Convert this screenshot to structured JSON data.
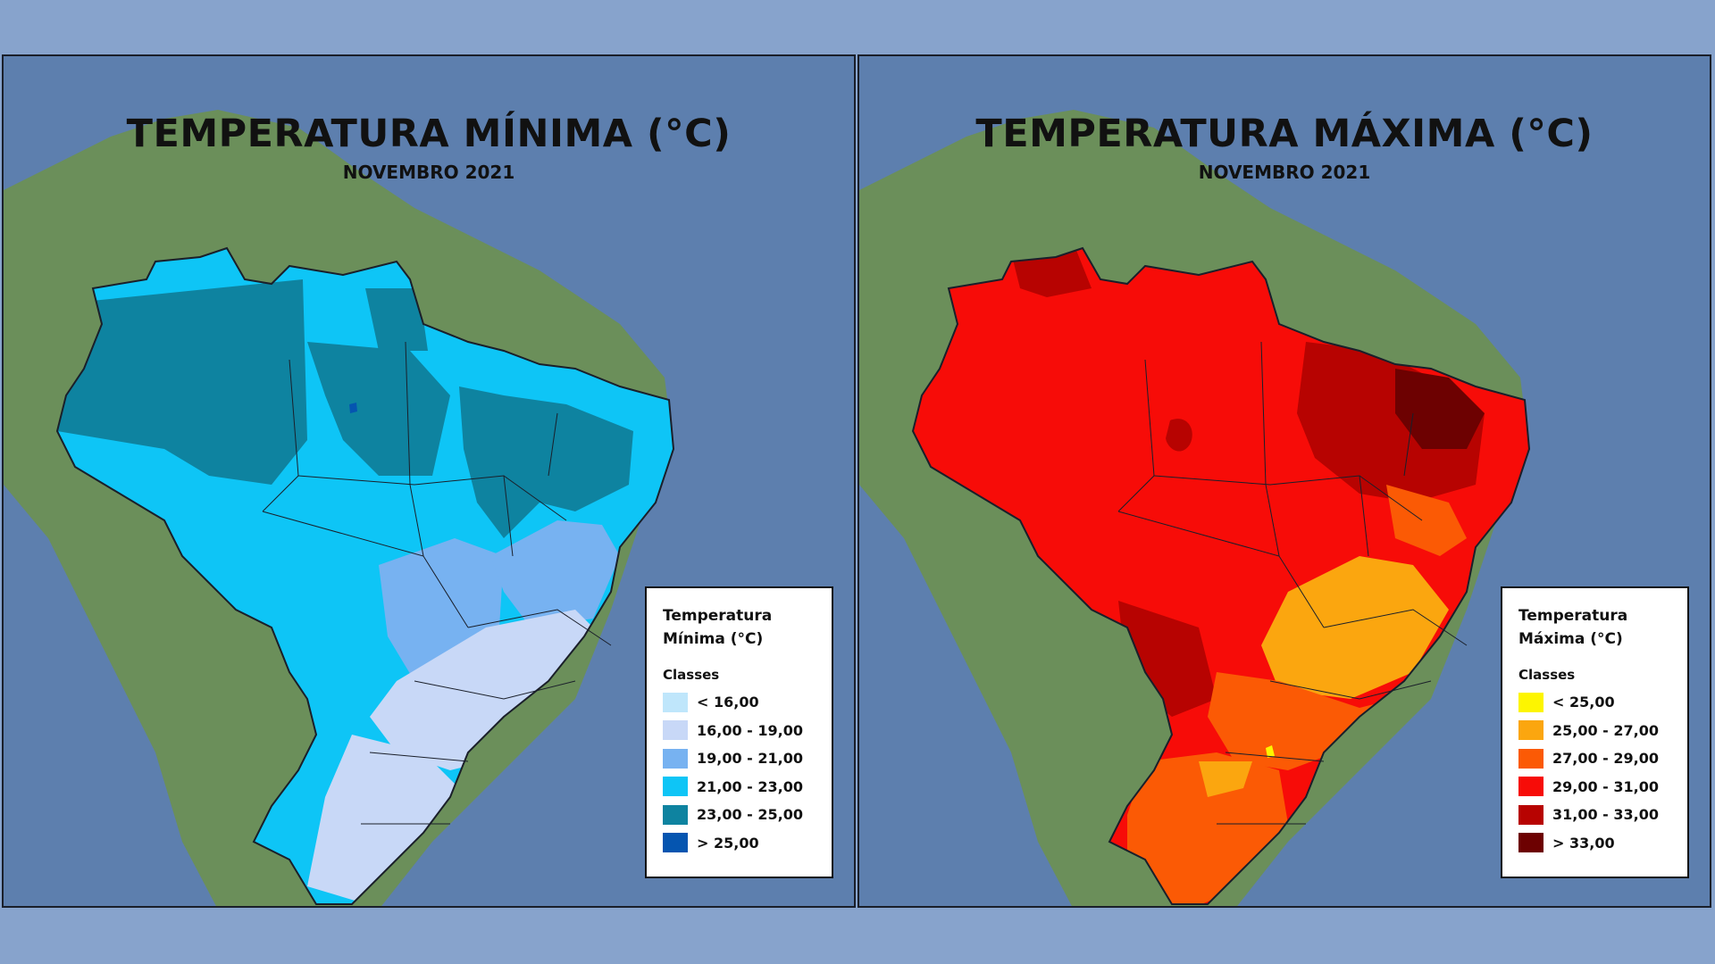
{
  "panels": [
    {
      "title": "TEMPERATURA MÍNIMA (°C)",
      "subtitle": "NOVEMBRO 2021",
      "legend": {
        "title_line1": "Temperatura",
        "title_line2": "Mínima (°C)",
        "classes_label": "Classes",
        "items": [
          {
            "label": "< 16,00",
            "color": "#bfe6fb"
          },
          {
            "label": "16,00 - 19,00",
            "color": "#c8d8f7"
          },
          {
            "label": "19,00 - 21,00",
            "color": "#77b2f1"
          },
          {
            "label": "21,00 - 23,00",
            "color": "#0ec5f6"
          },
          {
            "label": "23,00 - 25,00",
            "color": "#0e83a0"
          },
          {
            "label": "> 25,00",
            "color": "#0555b0"
          }
        ]
      }
    },
    {
      "title": "TEMPERATURA MÁXIMA (°C)",
      "subtitle": "NOVEMBRO 2021",
      "legend": {
        "title_line1": "Temperatura",
        "title_line2": "Máxima (°C)",
        "classes_label": "Classes",
        "items": [
          {
            "label": "< 25,00",
            "color": "#fdf500"
          },
          {
            "label": "25,00 - 27,00",
            "color": "#fba60f"
          },
          {
            "label": "27,00 - 29,00",
            "color": "#fb5a05"
          },
          {
            "label": "29,00 - 31,00",
            "color": "#f70c08"
          },
          {
            "label": "31,00 - 33,00",
            "color": "#b70301"
          },
          {
            "label": "> 33,00",
            "color": "#6d0101"
          }
        ]
      }
    }
  ],
  "colors": {
    "page_background": "#87a3cc",
    "ocean": "#5d7fae",
    "land": "#6b8f5a",
    "border_lines": "#1a1f2a"
  }
}
